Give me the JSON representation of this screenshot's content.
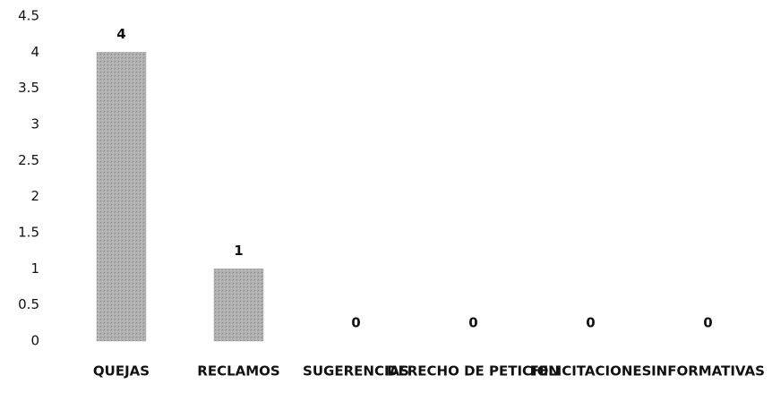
{
  "chart_data": {
    "type": "bar",
    "categories": [
      "QUEJAS",
      "RECLAMOS",
      "SUGERENCIAS",
      "DERECHO DE PETICION",
      "FELICITACIONES",
      "INFORMATIVAS"
    ],
    "values": [
      4,
      1,
      0,
      0,
      0,
      0
    ],
    "color": "#a8a8a8",
    "ylim": [
      0,
      4.5
    ],
    "yticks": [
      0,
      0.5,
      1,
      1.5,
      2,
      2.5,
      3,
      3.5,
      4,
      4.5
    ],
    "grid": false
  }
}
